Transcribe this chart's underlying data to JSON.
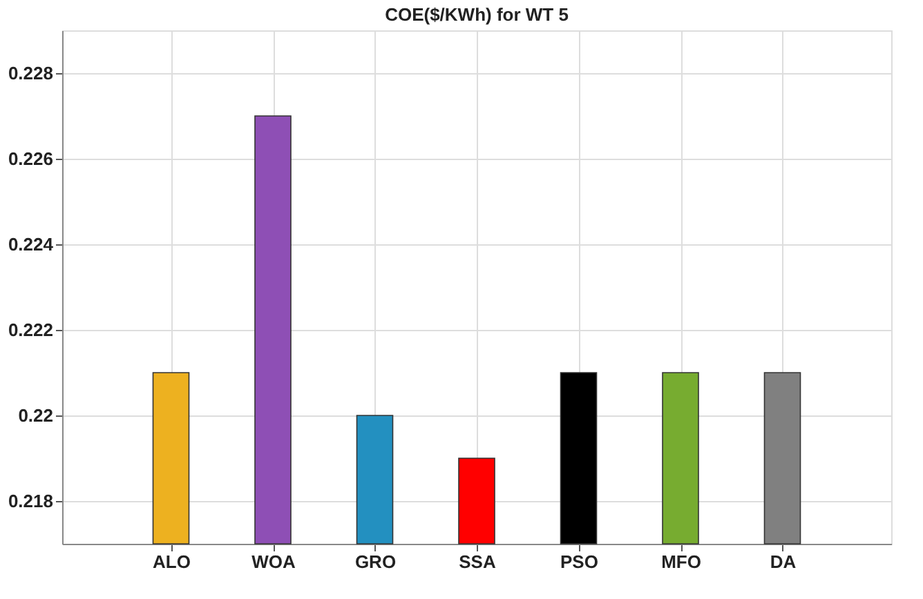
{
  "chart_data": {
    "type": "bar",
    "title": "COE($/KWh) for WT 5",
    "categories": [
      "ALO",
      "WOA",
      "GRO",
      "SSA",
      "PSO",
      "MFO",
      "DA"
    ],
    "values": [
      0.221,
      0.227,
      0.22,
      0.219,
      0.221,
      0.221,
      0.221
    ],
    "colors": [
      "#edb120",
      "#8e4fb5",
      "#2390c0",
      "#ff0000",
      "#000000",
      "#77ac30",
      "#808080"
    ],
    "ylim": [
      0.217,
      0.229
    ],
    "yticks": [
      0.218,
      0.22,
      0.222,
      0.224,
      0.226,
      0.228
    ],
    "grid": true
  }
}
